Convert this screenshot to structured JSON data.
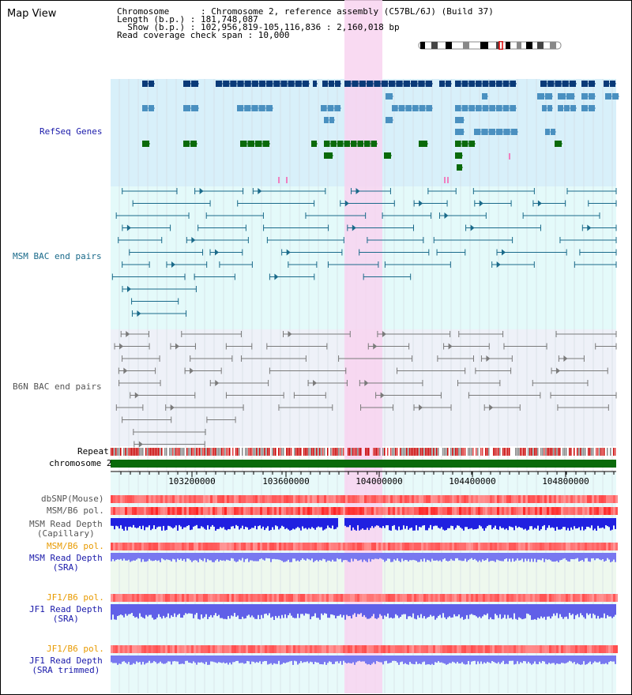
{
  "page": {
    "title": "Map View"
  },
  "info": {
    "line1": "Chromosome      : Chromosome 2, reference assembly (C57BL/6J) (Build 37)",
    "line2": "Length (b.p.) : 181,748,087",
    "line3": "  Show (b.p.) : 102,956,819-105,116,836 : 2,160,018 bp",
    "line4": "Read coverage check span : 10,000"
  },
  "tracks": {
    "refseq": "RefSeq Genes",
    "msm_bac": "MSM BAC end pairs",
    "b6n_bac": "B6N BAC end pairs",
    "repeat": "Repeat",
    "chromosome": "chromosome 2",
    "dbsnp": "dbSNP(Mouse)",
    "msm_b6_pol_1": "MSM/B6 pol.",
    "msm_cap_1": "MSM Read Depth",
    "msm_cap_2": "(Capillary)",
    "msm_b6_pol_2": "MSM/B6 pol.",
    "msm_sra_1": "MSM Read Depth",
    "msm_sra_2": "(SRA)",
    "jf1_pol_1": "JF1/B6 pol.",
    "jf1_sra_1": "JF1 Read Depth",
    "jf1_sra_2": "(SRA)",
    "jf1_pol_2": "JF1/B6 pol.",
    "jf1_trim_1": "JF1 Read Depth",
    "jf1_trim_2": "(SRA trimmed)"
  },
  "axis": {
    "ticks": [
      "103200000",
      "103600000",
      "104000000",
      "104400000",
      "104800000"
    ]
  },
  "colors": {
    "refseq_bg": "#d8f0fa",
    "msm_bg": "#e4fafa",
    "b6n_bg": "#eef1f8",
    "highlight": "#f8d4f0",
    "gene_dark": "#0a3a78",
    "gene_mid": "#4a90c0",
    "gene_green": "#0a6a0a",
    "bac_teal": "#1a6a8a",
    "bac_gray": "#7a7a7a",
    "chromosome_green": "#0a6a0a",
    "depth_blue": "#2020e0",
    "depth_light": "#7878f0",
    "label_blue": "#1a1aaa",
    "label_orange": "#e89a00",
    "label_teal": "#1a6a8a"
  }
}
